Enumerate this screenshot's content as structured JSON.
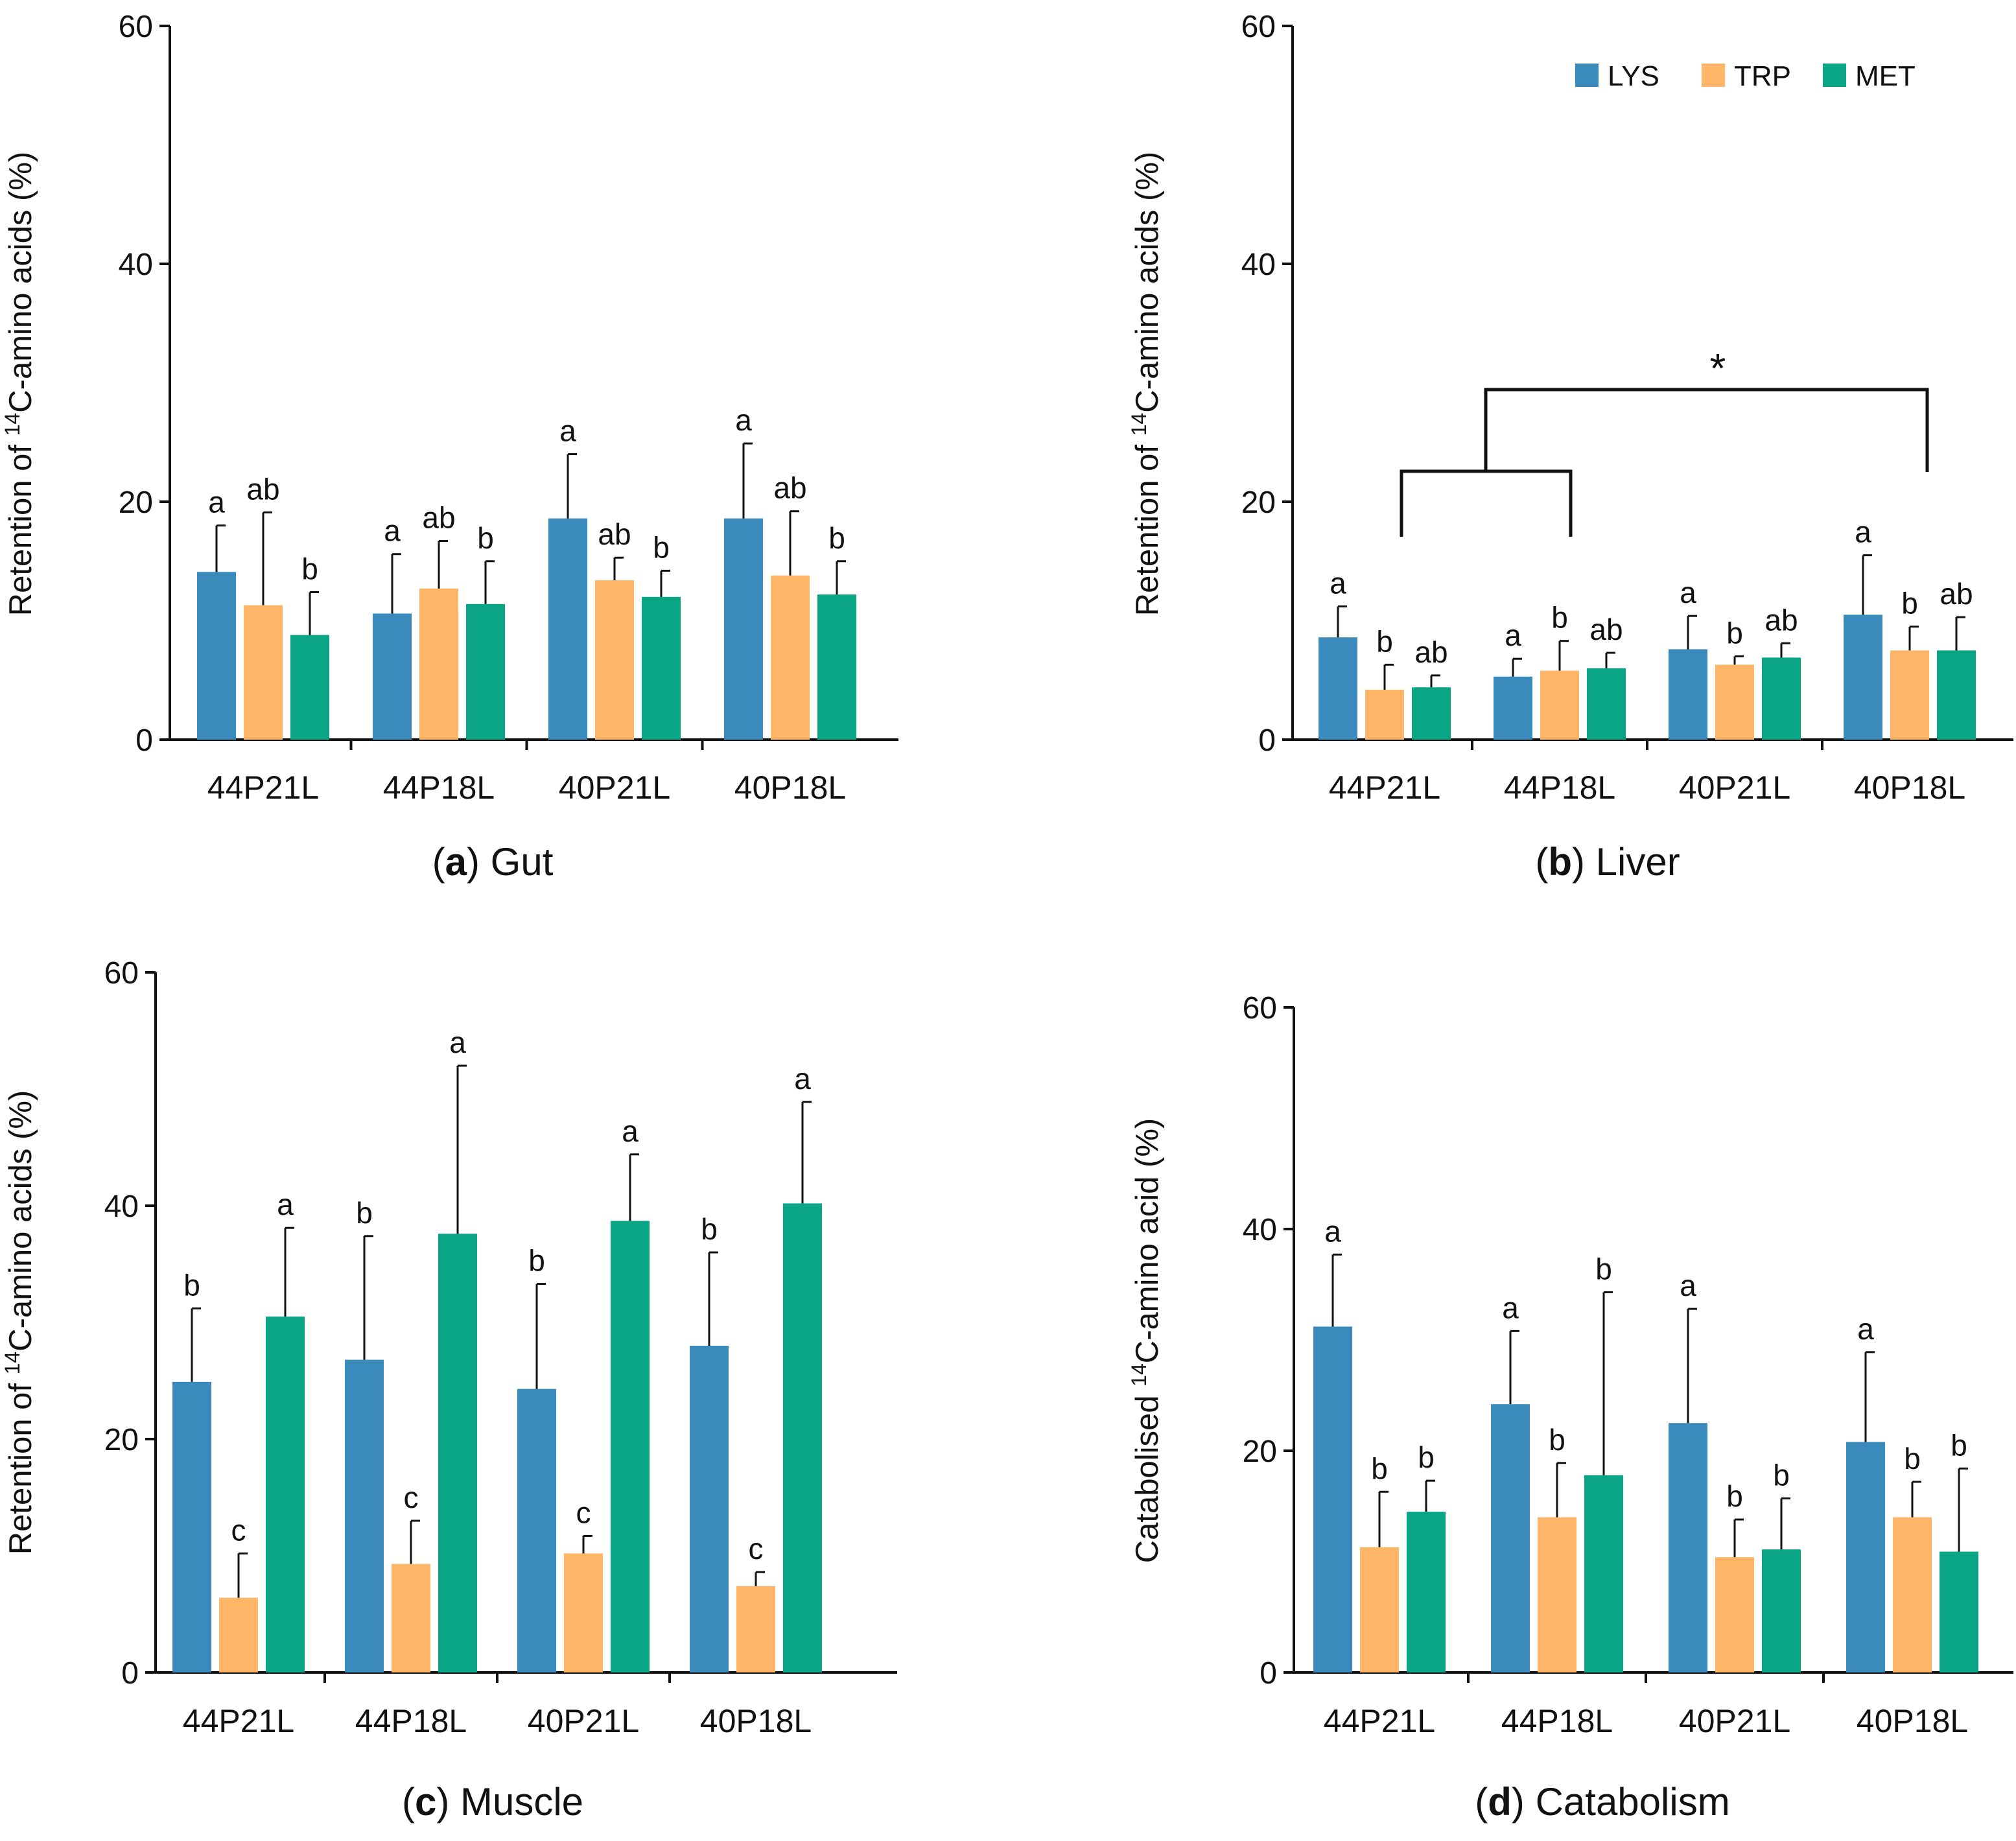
{
  "legend": {
    "items": [
      {
        "label": "LYS",
        "color": "#3A8BBC"
      },
      {
        "label": "TRP",
        "color": "#FDB667"
      },
      {
        "label": "MET",
        "color": "#0AA585"
      }
    ]
  },
  "chart_data": [
    {
      "type": "bar",
      "panel_letter": "a",
      "panel_name": "Gut",
      "ylabel_pre": "Retention of ",
      "ylabel_sup": "14",
      "ylabel_post": "C-amino acids (%)",
      "ylim": [
        0,
        60
      ],
      "yticks": [
        0,
        20,
        40,
        60
      ],
      "categories": [
        "44P21L",
        "44P18L",
        "40P21L",
        "40P18L"
      ],
      "series": [
        {
          "name": "LYS",
          "values": [
            14.1,
            10.6,
            18.6,
            18.6
          ],
          "err": [
            3.9,
            5.0,
            5.4,
            6.3
          ],
          "letters": [
            "a",
            "a",
            "a",
            "a"
          ]
        },
        {
          "name": "TRP",
          "values": [
            11.3,
            12.7,
            13.4,
            13.8
          ],
          "err": [
            7.8,
            4.0,
            1.9,
            5.4
          ],
          "letters": [
            "ab",
            "ab",
            "ab",
            "ab"
          ]
        },
        {
          "name": "MET",
          "values": [
            8.8,
            11.4,
            12.0,
            12.2
          ],
          "err": [
            3.6,
            3.6,
            2.2,
            2.8
          ],
          "letters": [
            "b",
            "b",
            "b",
            "b"
          ]
        }
      ],
      "bracket": null
    },
    {
      "type": "bar",
      "panel_letter": "b",
      "panel_name": "Liver",
      "ylabel_pre": "Retention of ",
      "ylabel_sup": "14",
      "ylabel_post": "C-amino acids (%)",
      "ylim": [
        0,
        60
      ],
      "yticks": [
        0,
        20,
        40,
        60
      ],
      "categories": [
        "44P21L",
        "44P18L",
        "40P21L",
        "40P18L"
      ],
      "series": [
        {
          "name": "LYS",
          "values": [
            8.6,
            5.3,
            7.6,
            10.5
          ],
          "err": [
            2.6,
            1.5,
            2.8,
            5.0
          ],
          "letters": [
            "a",
            "a",
            "a",
            "a"
          ]
        },
        {
          "name": "TRP",
          "values": [
            4.2,
            5.8,
            6.3,
            7.5
          ],
          "err": [
            2.1,
            2.5,
            0.7,
            2.0
          ],
          "letters": [
            "b",
            "b",
            "b",
            "b"
          ]
        },
        {
          "name": "MET",
          "values": [
            4.4,
            6.0,
            6.9,
            7.5
          ],
          "err": [
            1.0,
            1.3,
            1.2,
            2.8
          ],
          "letters": [
            "ab",
            "ab",
            "ab",
            "ab"
          ]
        }
      ],
      "bracket": {
        "label": "*"
      }
    },
    {
      "type": "bar",
      "panel_letter": "c",
      "panel_name": "Muscle",
      "ylabel_pre": "Retention of ",
      "ylabel_sup": "14",
      "ylabel_post": "C-amino acids (%)",
      "ylim": [
        0,
        60
      ],
      "yticks": [
        0,
        20,
        40,
        60
      ],
      "categories": [
        "44P21L",
        "44P18L",
        "40P21L",
        "40P18L"
      ],
      "series": [
        {
          "name": "LYS",
          "values": [
            24.9,
            26.8,
            24.3,
            28.0
          ],
          "err": [
            6.3,
            10.6,
            9.0,
            8.0
          ],
          "letters": [
            "b",
            "b",
            "b",
            "b"
          ]
        },
        {
          "name": "TRP",
          "values": [
            6.4,
            9.3,
            10.2,
            7.4
          ],
          "err": [
            3.8,
            3.7,
            1.5,
            1.2
          ],
          "letters": [
            "c",
            "c",
            "c",
            "c"
          ]
        },
        {
          "name": "MET",
          "values": [
            30.5,
            37.6,
            38.7,
            40.2
          ],
          "err": [
            7.6,
            14.4,
            5.7,
            8.7
          ],
          "letters": [
            "a",
            "a",
            "a",
            "a"
          ]
        }
      ],
      "bracket": null
    },
    {
      "type": "bar",
      "panel_letter": "d",
      "panel_name": "Catabolism",
      "ylabel_pre": "Catabolised ",
      "ylabel_sup": "14",
      "ylabel_post": "C-amino acid (%)",
      "ylim": [
        0,
        60
      ],
      "yticks": [
        0,
        20,
        40,
        60
      ],
      "categories": [
        "44P21L",
        "44P18L",
        "40P21L",
        "40P18L"
      ],
      "series": [
        {
          "name": "LYS",
          "values": [
            31.2,
            24.2,
            22.5,
            20.8
          ],
          "err": [
            6.5,
            6.6,
            10.3,
            8.1
          ],
          "letters": [
            "a",
            "a",
            "a",
            "a"
          ]
        },
        {
          "name": "TRP",
          "values": [
            11.3,
            14.0,
            10.4,
            14.0
          ],
          "err": [
            5.0,
            4.9,
            3.4,
            3.2
          ],
          "letters": [
            "b",
            "b",
            "b",
            "b"
          ]
        },
        {
          "name": "MET",
          "values": [
            14.5,
            17.8,
            11.1,
            10.9
          ],
          "err": [
            2.8,
            16.5,
            4.6,
            7.5
          ],
          "letters": [
            "b",
            "b",
            "b",
            "b"
          ]
        }
      ],
      "bracket": null
    }
  ]
}
